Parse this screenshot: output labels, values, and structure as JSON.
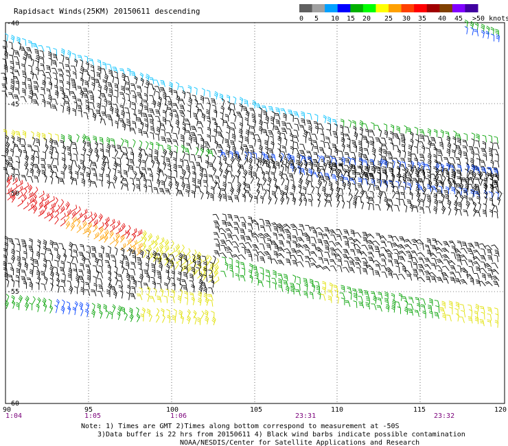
{
  "title": "Rapidsact Winds(25KM) 20150611 descending",
  "legend": {
    "colors": [
      "#606060",
      "#a0a0a0",
      "#00a0ff",
      "#0000ff",
      "#00b000",
      "#00ff00",
      "#ffff00",
      "#ffa000",
      "#ff4000",
      "#ff0000",
      "#a00000",
      "#804000",
      "#8000ff",
      "#4000a0"
    ],
    "labels": [
      "0",
      "5",
      "10",
      "15",
      "20",
      "25",
      "30",
      "35",
      "40",
      "45",
      ">50 knots"
    ]
  },
  "map": {
    "lat_labels": [
      "-40",
      "-45",
      "-50",
      "-55",
      "-60"
    ],
    "lon_labels": [
      "90",
      "95",
      "100",
      "105",
      "110",
      "115",
      "120"
    ],
    "lat_range": [
      -60,
      -40
    ],
    "lon_range": [
      90,
      120
    ],
    "time_labels": [
      "1:04",
      "1:05",
      "1:06",
      "23:31",
      "23:32"
    ]
  },
  "notes": [
    "Note: 1) Times are GMT 2)Times along bottom correspond to measurement at -50S",
    "3)Data buffer is 22 hrs from 20150611 4) Black wind barbs indicate possible contamination",
    "NOAA/NESDIS/Center for Satellite Applications and Research"
  ],
  "barb_colors": {
    "black": "#000000",
    "light_blue": "#00c0ff",
    "blue": "#0040ff",
    "green": "#00a000",
    "yellow": "#e0e000",
    "orange": "#ffa000",
    "red": "#e00000"
  }
}
